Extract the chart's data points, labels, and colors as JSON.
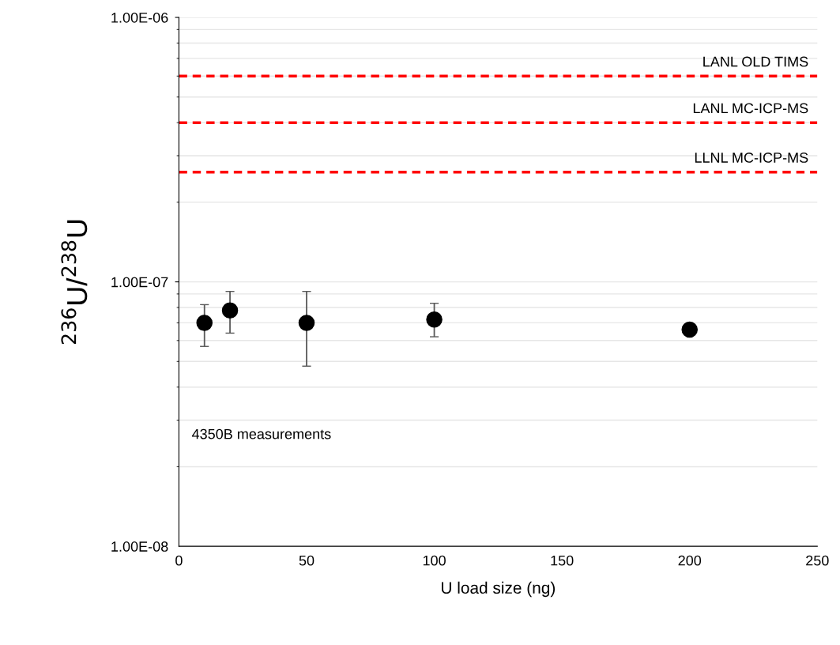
{
  "chart_data": {
    "type": "scatter",
    "xlabel": "U load size (ng)",
    "ylabel": "$^{236}$U/$^{238}$U",
    "x": [
      10,
      20,
      50,
      100,
      200
    ],
    "values": [
      7e-08,
      7.8e-08,
      7e-08,
      7.2e-08,
      6.6e-08
    ],
    "errors": [
      [
        5.7e-08,
        8.2e-08
      ],
      [
        6.4e-08,
        9.2e-08
      ],
      [
        4.8e-08,
        9.2e-08
      ],
      [
        6.2e-08,
        8.3e-08
      ],
      null
    ],
    "color": "#000000",
    "marker": "circle",
    "log": "y",
    "xlim": [
      0,
      250
    ],
    "xticks": [
      0,
      50,
      100,
      150,
      200,
      250
    ],
    "ylim": [
      1e-08,
      1e-06
    ],
    "yticks": [
      {
        "value": 1e-08,
        "label": "1.00E-08"
      },
      {
        "value": 1e-07,
        "label": "1.00E-07"
      },
      {
        "value": 1e-06,
        "label": "1.00E-06"
      }
    ],
    "grid": "y",
    "ref_lines": [
      {
        "axis": "y",
        "value": 6e-07,
        "label": "LANL OLD TIMS",
        "color": "#ff0000",
        "line_style": "dashed"
      },
      {
        "axis": "y",
        "value": 4e-07,
        "label": "LANL MC-ICP-MS",
        "color": "#ff0000",
        "line_style": "dashed"
      },
      {
        "axis": "y",
        "value": 2.6e-07,
        "label": "LLNL MC-ICP-MS",
        "color": "#ff0000",
        "line_style": "dashed"
      }
    ],
    "annotations": [
      "4350B measurements"
    ]
  }
}
